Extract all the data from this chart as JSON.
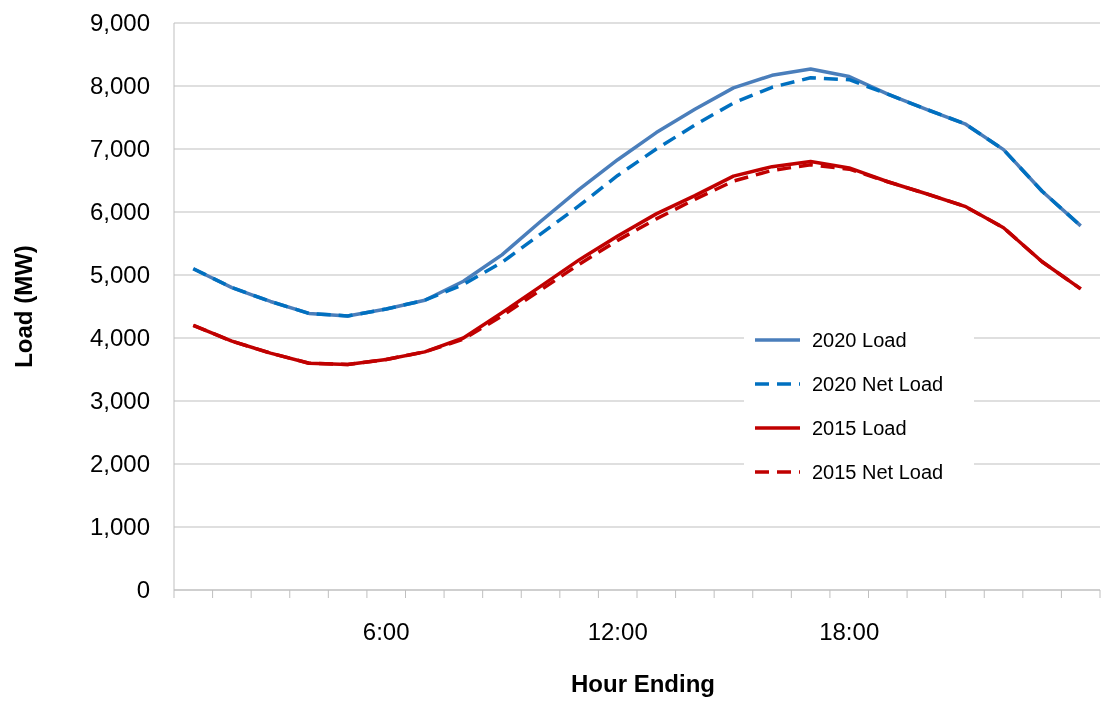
{
  "chart_data": {
    "type": "line",
    "xlabel": "Hour Ending",
    "ylabel": "Load (MW)",
    "categories": [
      null,
      null,
      null,
      null,
      null,
      "6:00",
      null,
      null,
      null,
      null,
      null,
      "12:00",
      null,
      null,
      null,
      null,
      null,
      "18:00",
      null,
      null,
      null,
      null,
      null,
      null
    ],
    "series": [
      {
        "name": "2020 Load",
        "color": "#4a7ebb",
        "line_style": "solid",
        "values": [
          5100,
          4800,
          4580,
          4390,
          4350,
          4460,
          4600,
          4900,
          5320,
          5850,
          6360,
          6830,
          7260,
          7630,
          7970,
          8170,
          8270,
          8150,
          7870,
          7630,
          7400,
          6990,
          6330,
          5780
        ]
      },
      {
        "name": "2020 Net Load",
        "color": "#0070c0",
        "line_style": "dashed",
        "values": [
          5100,
          4800,
          4580,
          4390,
          4350,
          4460,
          4600,
          4850,
          5200,
          5650,
          6100,
          6580,
          7000,
          7380,
          7730,
          7980,
          8130,
          8100,
          7870,
          7630,
          7400,
          6990,
          6330,
          5780
        ]
      },
      {
        "name": "2015 Load",
        "color": "#c00000",
        "line_style": "solid",
        "values": [
          4200,
          3950,
          3760,
          3600,
          3580,
          3660,
          3780,
          4000,
          4400,
          4820,
          5240,
          5620,
          5970,
          6260,
          6570,
          6720,
          6800,
          6700,
          6480,
          6290,
          6090,
          5750,
          5210,
          4780
        ]
      },
      {
        "name": "2015 Net Load",
        "color": "#c00000",
        "line_style": "dashed",
        "values": [
          4200,
          3950,
          3760,
          3600,
          3580,
          3660,
          3780,
          3980,
          4350,
          4760,
          5170,
          5550,
          5890,
          6200,
          6490,
          6660,
          6750,
          6680,
          6480,
          6290,
          6090,
          5750,
          5210,
          4780
        ]
      }
    ],
    "ylim": [
      0,
      9000
    ],
    "yticks": [
      {
        "value": 0,
        "label": "0"
      },
      {
        "value": 1000,
        "label": "1,000"
      },
      {
        "value": 2000,
        "label": "2,000"
      },
      {
        "value": 3000,
        "label": "3,000"
      },
      {
        "value": 4000,
        "label": "4,000"
      },
      {
        "value": 5000,
        "label": "5,000"
      },
      {
        "value": 6000,
        "label": "6,000"
      },
      {
        "value": 7000,
        "label": "7,000"
      },
      {
        "value": 8000,
        "label": "8,000"
      },
      {
        "value": 9000,
        "label": "9,000"
      }
    ],
    "grid": "y",
    "legend": "right",
    "marker": "none"
  }
}
